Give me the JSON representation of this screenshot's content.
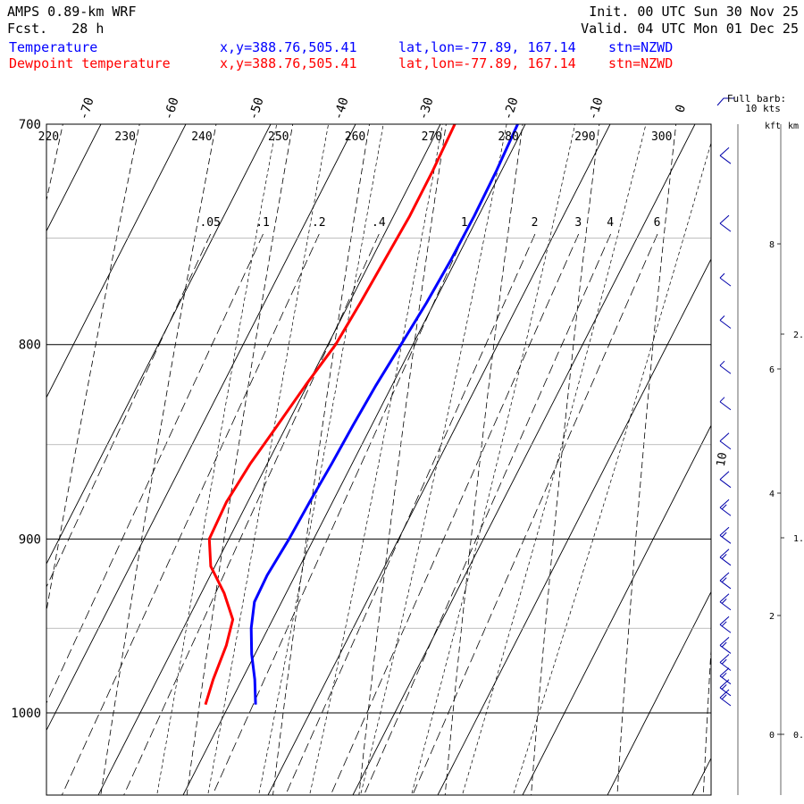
{
  "header": {
    "model": "AMPS 0.89-km WRF",
    "fcst_label": "Fcst.",
    "fcst_value": "28 h",
    "init_label": "Init.",
    "init_value": "00 UTC Sun 30 Nov 25",
    "valid_label": "Valid.",
    "valid_value": "04 UTC Mon 01 Dec 25"
  },
  "legend": [
    {
      "name": "Temperature",
      "color": "#0000ff",
      "xy": "x,y=388.76,505.41",
      "latlon": "lat,lon=-77.89, 167.14",
      "stn": "stn=NZWD"
    },
    {
      "name": "Dewpoint temperature",
      "color": "#ff0000",
      "xy": "x,y=388.76,505.41",
      "latlon": "lat,lon=-77.89, 167.14",
      "stn": "stn=NZWD"
    }
  ],
  "barb_key": {
    "line1": "Full barb:",
    "line2": "10 kts"
  },
  "units": {
    "kft": "kft",
    "km": "km"
  },
  "chart_data": {
    "type": "line",
    "diagram": "skew-T log-p",
    "y_axis": {
      "quantity": "pressure",
      "ticks": [
        "700",
        "800",
        "900",
        "1000"
      ]
    },
    "temperature_ticks": [
      "-70",
      "-60",
      "-50",
      "-40",
      "-30",
      "-20",
      "-10",
      "0"
    ],
    "dry_adiabat_labels": [
      "220",
      "230",
      "240",
      "250",
      "260",
      "270",
      "280",
      "290",
      "300"
    ],
    "mixing_ratio_labels": [
      ".05",
      ".1",
      ".2",
      ".4",
      "1",
      "2",
      "3",
      "4",
      "6"
    ],
    "kft_ticks": [
      "0",
      "2",
      "4",
      "6",
      "8"
    ],
    "km_ticks": [
      "0.",
      "1.",
      "2."
    ],
    "series": [
      {
        "name": "Temperature",
        "color": "#0000ff",
        "points": [
          [
            700,
            -20.9
          ],
          [
            720,
            -20.6
          ],
          [
            740,
            -20.5
          ],
          [
            760,
            -20.6
          ],
          [
            780,
            -20.9
          ],
          [
            800,
            -21.4
          ],
          [
            820,
            -21.9
          ],
          [
            840,
            -22.2
          ],
          [
            860,
            -22.4
          ],
          [
            880,
            -22.7
          ],
          [
            900,
            -22.9
          ],
          [
            920,
            -23.3
          ],
          [
            935,
            -23.2
          ],
          [
            950,
            -22.0
          ],
          [
            965,
            -20.4
          ],
          [
            980,
            -18.5
          ],
          [
            995,
            -16.9
          ]
        ]
      },
      {
        "name": "Dewpoint temperature",
        "color": "#ff0000",
        "points": [
          [
            700,
            -28.3
          ],
          [
            720,
            -28.1
          ],
          [
            740,
            -28.1
          ],
          [
            760,
            -28.4
          ],
          [
            780,
            -28.7
          ],
          [
            800,
            -29.1
          ],
          [
            820,
            -30.2
          ],
          [
            840,
            -31.1
          ],
          [
            860,
            -32.0
          ],
          [
            880,
            -32.5
          ],
          [
            900,
            -32.3
          ],
          [
            915,
            -30.5
          ],
          [
            930,
            -27.3
          ],
          [
            945,
            -24.7
          ],
          [
            960,
            -23.9
          ],
          [
            980,
            -23.4
          ],
          [
            995,
            -22.8
          ]
        ]
      }
    ],
    "wind_barbs": {
      "pressures": [
        715,
        745,
        770,
        790,
        812,
        830,
        850,
        870,
        885,
        900,
        912,
        925,
        937,
        950,
        962,
        972,
        980,
        987,
        993
      ],
      "speed_kts": [
        10,
        10,
        5,
        5,
        5,
        5,
        10,
        10,
        15,
        15,
        15,
        15,
        15,
        15,
        15,
        15,
        15,
        15,
        15
      ],
      "direction_deg": [
        340,
        340,
        345,
        345,
        345,
        350,
        350,
        350,
        355,
        355,
        355,
        355,
        355,
        355,
        355,
        355,
        355,
        355,
        355
      ]
    },
    "annotation": "10"
  }
}
